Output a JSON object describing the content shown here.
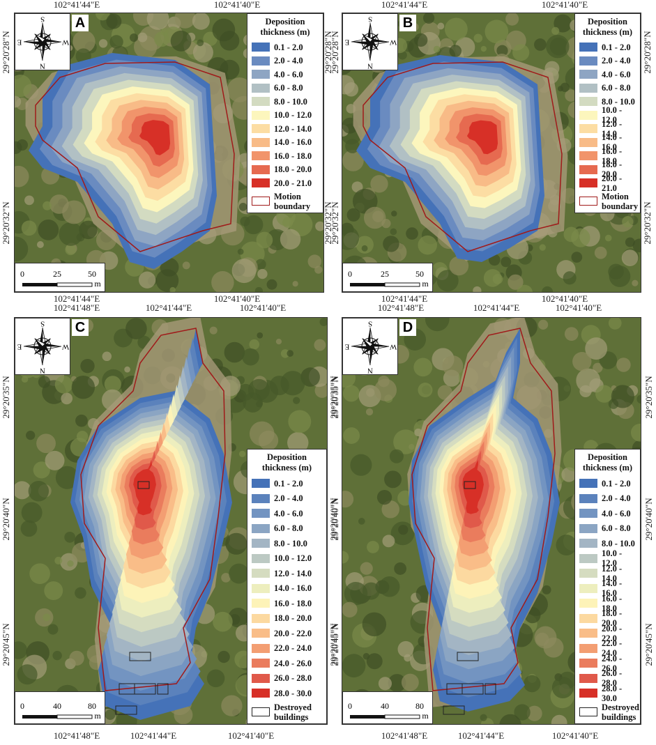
{
  "panels": [
    {
      "label": "A",
      "compass": {
        "top": "S",
        "right": "W",
        "bottom": "N",
        "left": "E"
      },
      "top_ticks": [
        "102°41'44\"E",
        "102°41'40\"E"
      ],
      "bottom_ticks": [
        "102°41'44\"E",
        "102°41'40\"E"
      ],
      "left_ticks": [
        "29°20'28\"N",
        "29°20'32\"N"
      ],
      "right_ticks": [
        "29°20'28\"N",
        "29°20'32\"N"
      ],
      "legend": {
        "title": "Deposition thickness (m)",
        "items": [
          {
            "label": "0.1 - 2.0",
            "color": "#4572b8"
          },
          {
            "label": "2.0 - 4.0",
            "color": "#6a8bc0"
          },
          {
            "label": "4.0 - 6.0",
            "color": "#8ea5c3"
          },
          {
            "label": "6.0 - 8.0",
            "color": "#b1c0c4"
          },
          {
            "label": "8.0 - 10.0",
            "color": "#d3dbc1"
          },
          {
            "label": "10.0 - 12.0",
            "color": "#fcf6bd"
          },
          {
            "label": "12.0 - 14.0",
            "color": "#fcdda3"
          },
          {
            "label": "14.0 - 16.0",
            "color": "#f8bb87"
          },
          {
            "label": "16.0 - 18.0",
            "color": "#f1946b"
          },
          {
            "label": "18.0 - 20.0",
            "color": "#e66a50"
          },
          {
            "label": "20.0 - 21.0",
            "color": "#d73027"
          }
        ],
        "boundary": "Motion boundary"
      },
      "scale": {
        "ticks": [
          "0",
          "25",
          "50"
        ],
        "unit": "m"
      }
    },
    {
      "label": "B",
      "compass": {
        "top": "S",
        "right": "W",
        "bottom": "N",
        "left": "E"
      },
      "top_ticks": [
        "102°41'44\"E",
        "102°41'40\"E"
      ],
      "bottom_ticks": [
        "102°41'44\"E",
        "102°41'40\"E"
      ],
      "left_ticks": [
        "29°20'28\"N",
        "29°20'32\"N"
      ],
      "right_ticks": [
        "29°20'28\"N",
        "29°20'32\"N"
      ],
      "legend": {
        "title": "Deposition thickness (m)",
        "items": [
          {
            "label": "0.1 - 2.0",
            "color": "#4572b8"
          },
          {
            "label": "2.0 - 4.0",
            "color": "#6a8bc0"
          },
          {
            "label": "4.0 - 6.0",
            "color": "#8ea5c3"
          },
          {
            "label": "6.0 - 8.0",
            "color": "#b1c0c4"
          },
          {
            "label": "8.0 - 10.0",
            "color": "#d3dbc1"
          },
          {
            "label": "10.0 - 12.0",
            "color": "#fcf6bd"
          },
          {
            "label": "12.0 - 14.0",
            "color": "#fcdda3"
          },
          {
            "label": "14.0 - 16.0",
            "color": "#f8bb87"
          },
          {
            "label": "16.0 - 18.0",
            "color": "#f1946b"
          },
          {
            "label": "18.0 - 20.0",
            "color": "#e66a50"
          },
          {
            "label": "20.0 - 21.0",
            "color": "#d73027"
          }
        ],
        "boundary": "Motion boundary"
      },
      "scale": {
        "ticks": [
          "0",
          "25",
          "50"
        ],
        "unit": "m"
      }
    },
    {
      "label": "C",
      "compass": {
        "top": "S",
        "right": "W",
        "bottom": "N",
        "left": "E"
      },
      "top_ticks": [
        "102°41'48\"E",
        "102°41'44\"E",
        "102°41'40\"E"
      ],
      "bottom_ticks": [
        "102°41'48\"E",
        "102°41'44\"E",
        "102°41'40\"E"
      ],
      "left_ticks": [
        "29°20'35\"N",
        "29°20'40\"N",
        "29°20'45\"N"
      ],
      "right_ticks": [
        "29°20'35\"N",
        "29°20'40\"N",
        "29°20'45\"N"
      ],
      "legend": {
        "title": "Deposition thickness (m)",
        "items": [
          {
            "label": "0.1 - 2.0",
            "color": "#4572b8"
          },
          {
            "label": "2.0 - 4.0",
            "color": "#5b82bc"
          },
          {
            "label": "4.0 - 6.0",
            "color": "#7394c1"
          },
          {
            "label": "6.0 - 8.0",
            "color": "#8ba5c3"
          },
          {
            "label": "8.0 - 10.0",
            "color": "#a3b5c4"
          },
          {
            "label": "10.0 - 12.0",
            "color": "#bcc9c3"
          },
          {
            "label": "12.0 - 14.0",
            "color": "#d5dcc0"
          },
          {
            "label": "14.0 - 16.0",
            "color": "#edeebe"
          },
          {
            "label": "16.0 - 18.0",
            "color": "#fdf3b8"
          },
          {
            "label": "18.0 - 20.0",
            "color": "#fcd9a0"
          },
          {
            "label": "20.0 - 22.0",
            "color": "#f9bd88"
          },
          {
            "label": "22.0 - 24.0",
            "color": "#f39e72"
          },
          {
            "label": "24.0 - 26.0",
            "color": "#ea7c5d"
          },
          {
            "label": "26.0 - 28.0",
            "color": "#e0594a"
          },
          {
            "label": "28.0 - 30.0",
            "color": "#d73027"
          }
        ],
        "buildings": "Destroyed buildings",
        "boundary": "Motion boundary"
      },
      "scale": {
        "ticks": [
          "0",
          "40",
          "80"
        ],
        "unit": "m"
      }
    },
    {
      "label": "D",
      "compass": {
        "top": "S",
        "right": "W",
        "bottom": "N",
        "left": "E"
      },
      "top_ticks": [
        "102°41'48\"E",
        "102°41'44\"E",
        "102°41'40\"E"
      ],
      "bottom_ticks": [
        "102°41'48\"E",
        "102°41'44\"E",
        "102°41'40\"E"
      ],
      "left_ticks": [
        "29°20'35\"N",
        "29°20'40\"N",
        "29°20'45\"N"
      ],
      "right_ticks": [
        "29°20'35\"N",
        "29°20'40\"N",
        "29°20'45\"N"
      ],
      "legend": {
        "title": "Deposition thickness (m)",
        "items": [
          {
            "label": "0.1 - 2.0",
            "color": "#4572b8"
          },
          {
            "label": "2.0 - 4.0",
            "color": "#5b82bc"
          },
          {
            "label": "4.0 - 6.0",
            "color": "#7394c1"
          },
          {
            "label": "6.0 - 8.0",
            "color": "#8ba5c3"
          },
          {
            "label": "8.0 - 10.0",
            "color": "#a3b5c4"
          },
          {
            "label": "10.0 - 12.0",
            "color": "#bcc9c3"
          },
          {
            "label": "12.0 - 14.0",
            "color": "#d5dcc0"
          },
          {
            "label": "14.0 - 16.0",
            "color": "#edeebe"
          },
          {
            "label": "16.0 - 18.0",
            "color": "#fdf3b8"
          },
          {
            "label": "18.0 - 20.0",
            "color": "#fcd9a0"
          },
          {
            "label": "20.0 - 22.0",
            "color": "#f9bd88"
          },
          {
            "label": "22.0 - 24.0",
            "color": "#f39e72"
          },
          {
            "label": "24.0 - 26.0",
            "color": "#ea7c5d"
          },
          {
            "label": "26.0 - 28.0",
            "color": "#e0594a"
          },
          {
            "label": "28.0 - 30.0",
            "color": "#d73027"
          }
        ],
        "buildings": "Destroyed buildings",
        "boundary": "Motion boundary"
      },
      "scale": {
        "ticks": [
          "0",
          "40",
          "80"
        ],
        "unit": "m"
      }
    }
  ]
}
